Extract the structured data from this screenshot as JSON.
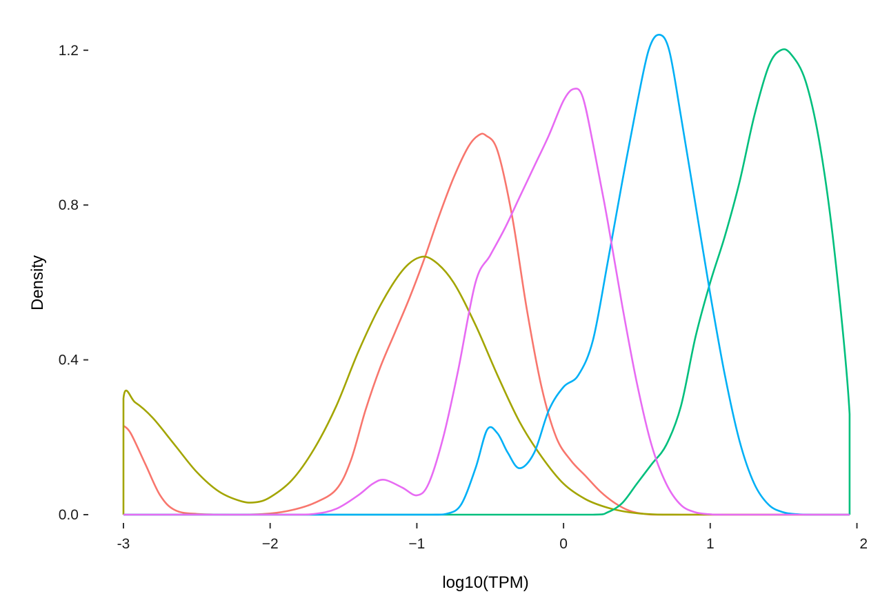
{
  "chart_data": {
    "type": "line",
    "title": "",
    "xlabel": "log10(TPM)",
    "ylabel": "Density",
    "xlim": [
      -3,
      1.95
    ],
    "ylim": [
      0,
      1.3
    ],
    "x_ticks": [
      -3,
      -2,
      -1,
      0,
      1,
      2
    ],
    "x_tick_labels": [
      "-3",
      "−2",
      "−1",
      "0",
      "1",
      "2"
    ],
    "y_ticks": [
      0,
      0.4,
      0.8,
      1.2
    ],
    "y_tick_labels": [
      "0.0",
      "0.4",
      "0.8",
      "1.2"
    ],
    "grid": false,
    "legend": "none",
    "series": [
      {
        "color": "#F8766D",
        "points": [
          [
            -3,
            0.23
          ],
          [
            -2.95,
            0.21
          ],
          [
            -2.85,
            0.13
          ],
          [
            -2.75,
            0.05
          ],
          [
            -2.65,
            0.012
          ],
          [
            -2.5,
            0.002
          ],
          [
            -2.2,
            0
          ],
          [
            -2.0,
            0.003
          ],
          [
            -1.85,
            0.012
          ],
          [
            -1.7,
            0.03
          ],
          [
            -1.55,
            0.065
          ],
          [
            -1.45,
            0.14
          ],
          [
            -1.35,
            0.27
          ],
          [
            -1.25,
            0.38
          ],
          [
            -1.15,
            0.47
          ],
          [
            -1.05,
            0.56
          ],
          [
            -0.95,
            0.66
          ],
          [
            -0.85,
            0.77
          ],
          [
            -0.75,
            0.87
          ],
          [
            -0.65,
            0.95
          ],
          [
            -0.58,
            0.98
          ],
          [
            -0.53,
            0.98
          ],
          [
            -0.45,
            0.94
          ],
          [
            -0.35,
            0.77
          ],
          [
            -0.25,
            0.53
          ],
          [
            -0.15,
            0.33
          ],
          [
            -0.05,
            0.2
          ],
          [
            0.05,
            0.14
          ],
          [
            0.15,
            0.1
          ],
          [
            0.25,
            0.06
          ],
          [
            0.35,
            0.03
          ],
          [
            0.45,
            0.01
          ],
          [
            0.55,
            0.002
          ],
          [
            0.7,
            0
          ],
          [
            1.95,
            0
          ]
        ]
      },
      {
        "color": "#A3A500",
        "points": [
          [
            -3,
            0
          ],
          [
            -3,
            0.3
          ],
          [
            -2.92,
            0.29
          ],
          [
            -2.8,
            0.25
          ],
          [
            -2.65,
            0.18
          ],
          [
            -2.5,
            0.11
          ],
          [
            -2.35,
            0.06
          ],
          [
            -2.2,
            0.035
          ],
          [
            -2.1,
            0.032
          ],
          [
            -2.0,
            0.045
          ],
          [
            -1.85,
            0.09
          ],
          [
            -1.7,
            0.17
          ],
          [
            -1.55,
            0.28
          ],
          [
            -1.4,
            0.42
          ],
          [
            -1.25,
            0.54
          ],
          [
            -1.1,
            0.63
          ],
          [
            -0.98,
            0.665
          ],
          [
            -0.88,
            0.655
          ],
          [
            -0.75,
            0.6
          ],
          [
            -0.6,
            0.49
          ],
          [
            -0.45,
            0.36
          ],
          [
            -0.3,
            0.24
          ],
          [
            -0.15,
            0.15
          ],
          [
            0,
            0.08
          ],
          [
            0.15,
            0.04
          ],
          [
            0.3,
            0.018
          ],
          [
            0.45,
            0.006
          ],
          [
            0.6,
            0.001
          ],
          [
            0.8,
            0
          ],
          [
            1.95,
            0
          ]
        ]
      },
      {
        "color": "#00BF7D",
        "points": [
          [
            -3,
            0
          ],
          [
            0.2,
            0
          ],
          [
            0.3,
            0.006
          ],
          [
            0.4,
            0.03
          ],
          [
            0.5,
            0.08
          ],
          [
            0.6,
            0.13
          ],
          [
            0.7,
            0.18
          ],
          [
            0.8,
            0.28
          ],
          [
            0.9,
            0.46
          ],
          [
            1.0,
            0.6
          ],
          [
            1.1,
            0.72
          ],
          [
            1.2,
            0.86
          ],
          [
            1.3,
            1.03
          ],
          [
            1.4,
            1.16
          ],
          [
            1.48,
            1.2
          ],
          [
            1.55,
            1.19
          ],
          [
            1.65,
            1.12
          ],
          [
            1.75,
            0.95
          ],
          [
            1.85,
            0.67
          ],
          [
            1.95,
            0.26
          ],
          [
            1.95,
            0
          ]
        ]
      },
      {
        "color": "#00B0F6",
        "points": [
          [
            -3,
            0
          ],
          [
            -0.9,
            0
          ],
          [
            -0.8,
            0.002
          ],
          [
            -0.7,
            0.025
          ],
          [
            -0.6,
            0.12
          ],
          [
            -0.52,
            0.22
          ],
          [
            -0.45,
            0.21
          ],
          [
            -0.38,
            0.16
          ],
          [
            -0.3,
            0.12
          ],
          [
            -0.2,
            0.16
          ],
          [
            -0.1,
            0.27
          ],
          [
            0,
            0.33
          ],
          [
            0.1,
            0.36
          ],
          [
            0.2,
            0.45
          ],
          [
            0.3,
            0.65
          ],
          [
            0.4,
            0.86
          ],
          [
            0.5,
            1.06
          ],
          [
            0.58,
            1.2
          ],
          [
            0.65,
            1.24
          ],
          [
            0.72,
            1.2
          ],
          [
            0.8,
            1.03
          ],
          [
            0.9,
            0.8
          ],
          [
            1.0,
            0.57
          ],
          [
            1.1,
            0.36
          ],
          [
            1.2,
            0.19
          ],
          [
            1.3,
            0.08
          ],
          [
            1.4,
            0.025
          ],
          [
            1.5,
            0.006
          ],
          [
            1.6,
            0.001
          ],
          [
            1.7,
            0
          ],
          [
            1.95,
            0
          ]
        ]
      },
      {
        "color": "#E76BF3",
        "points": [
          [
            -3,
            0
          ],
          [
            -1.9,
            0
          ],
          [
            -1.7,
            0.002
          ],
          [
            -1.55,
            0.015
          ],
          [
            -1.4,
            0.05
          ],
          [
            -1.3,
            0.08
          ],
          [
            -1.22,
            0.09
          ],
          [
            -1.1,
            0.07
          ],
          [
            -1.0,
            0.05
          ],
          [
            -0.92,
            0.08
          ],
          [
            -0.82,
            0.2
          ],
          [
            -0.72,
            0.37
          ],
          [
            -0.6,
            0.6
          ],
          [
            -0.5,
            0.67
          ],
          [
            -0.4,
            0.74
          ],
          [
            -0.3,
            0.82
          ],
          [
            -0.2,
            0.9
          ],
          [
            -0.1,
            0.98
          ],
          [
            0,
            1.07
          ],
          [
            0.07,
            1.1
          ],
          [
            0.13,
            1.08
          ],
          [
            0.2,
            0.96
          ],
          [
            0.3,
            0.76
          ],
          [
            0.4,
            0.54
          ],
          [
            0.5,
            0.34
          ],
          [
            0.6,
            0.18
          ],
          [
            0.7,
            0.08
          ],
          [
            0.8,
            0.025
          ],
          [
            0.9,
            0.006
          ],
          [
            1.0,
            0.001
          ],
          [
            1.1,
            0
          ],
          [
            1.95,
            0
          ]
        ]
      }
    ]
  }
}
